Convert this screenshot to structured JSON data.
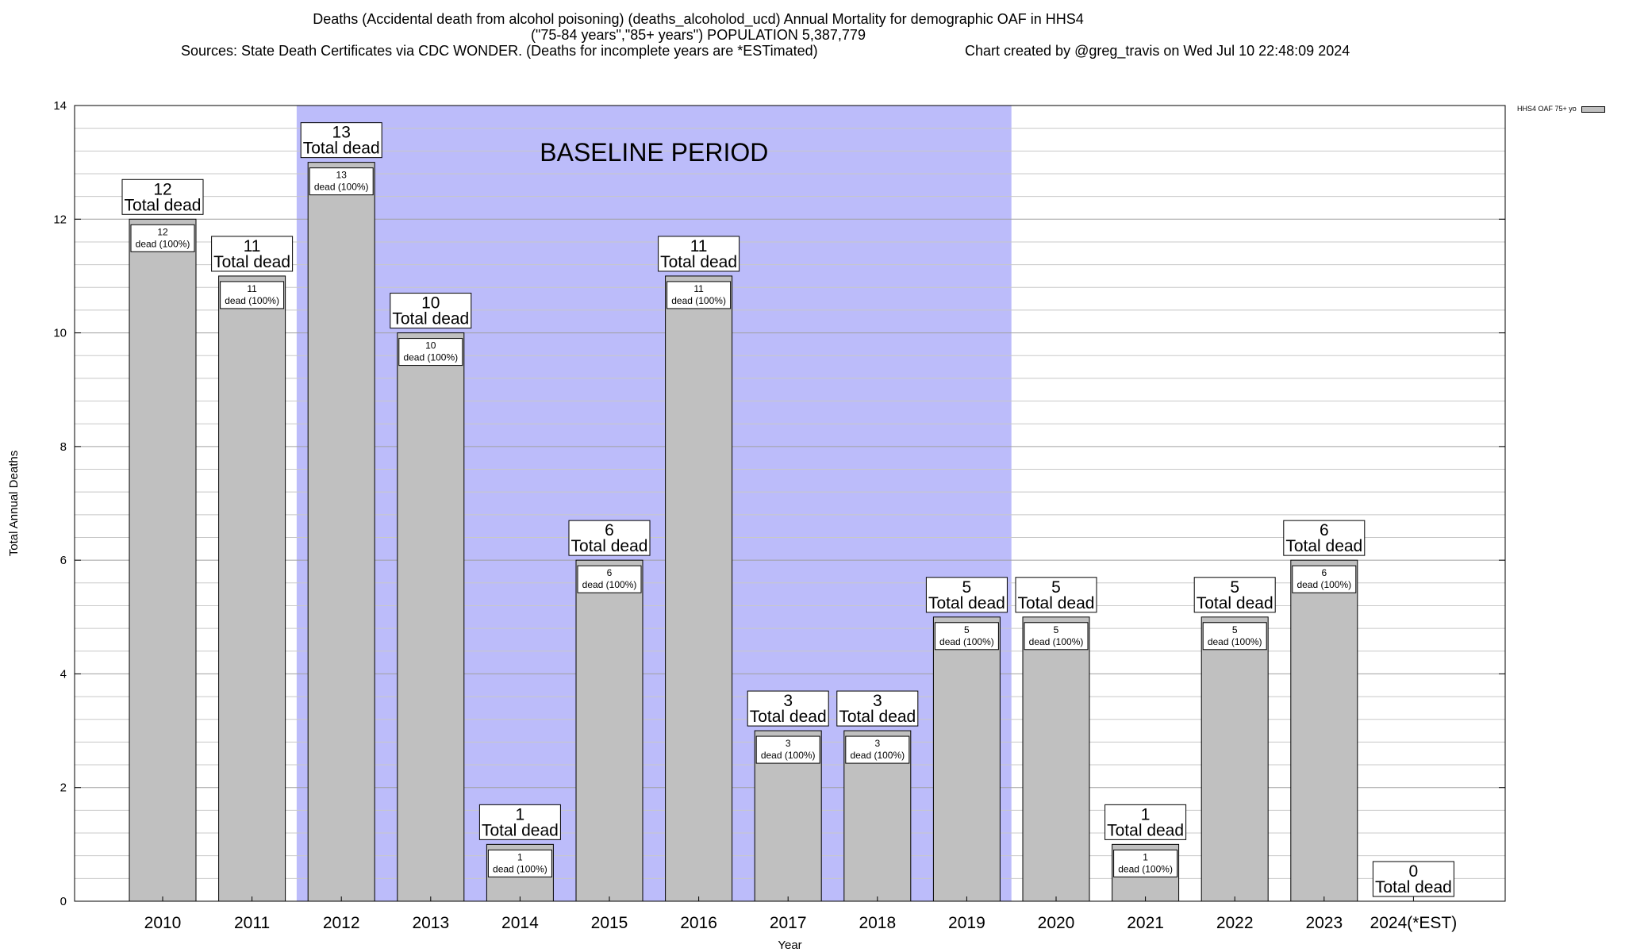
{
  "header": {
    "title_line1": "Deaths (Accidental death from alcohol poisoning) (deaths_alcoholod_ucd) Annual Mortality for demographic OAF in HHS4",
    "title_line2": "(\"75-84 years\",\"85+ years\") POPULATION 5,387,779",
    "title_line3": "Sources: State Death Certificates via CDC WONDER. (Deaths for incomplete years are *ESTimated)",
    "created": "Chart created by @greg_travis on Wed Jul 10 22:48:09 2024"
  },
  "chart_data": {
    "type": "bar",
    "categories": [
      "2010",
      "2011",
      "2012",
      "2013",
      "2014",
      "2015",
      "2016",
      "2017",
      "2018",
      "2019",
      "2020",
      "2021",
      "2022",
      "2023",
      "2024(*EST)"
    ],
    "series": [
      {
        "name": "HHS4 OAF 75+ yo",
        "values": [
          12,
          11,
          13,
          10,
          1,
          6,
          11,
          3,
          3,
          5,
          5,
          1,
          5,
          6,
          0
        ]
      }
    ],
    "total_label_suffix": "Total dead",
    "inner_label_suffix": "dead (100%)",
    "xlabel": "Year",
    "ylabel": "Total Annual Deaths",
    "ylim": [
      0,
      14
    ],
    "yticks": [
      0,
      2,
      4,
      6,
      8,
      10,
      12,
      14
    ],
    "baseline_period": {
      "label": "BASELINE PERIOD",
      "start": "2012",
      "end": "2019",
      "color": "#bcbcfa"
    },
    "bar_color": "#c0c0c0",
    "grid": true,
    "legend_position": "top-right"
  }
}
